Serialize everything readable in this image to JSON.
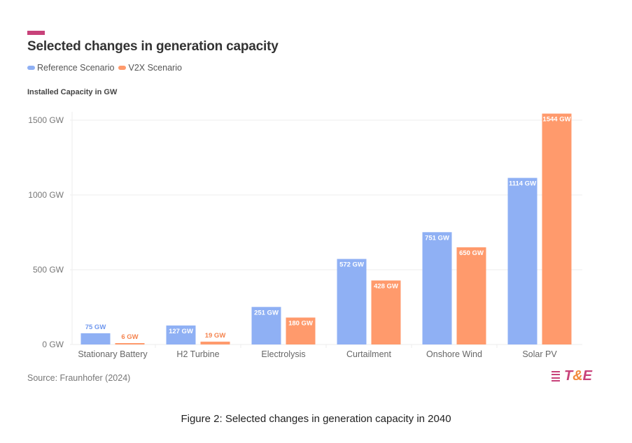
{
  "header": {
    "title": "Selected changes in generation capacity",
    "y_axis_title": "Installed Capacity in GW",
    "source": "Source: Fraunhofer (2024)",
    "logo_text_t": "T",
    "logo_text_amp": "&",
    "logo_text_e": "E",
    "caption": "Figure 2: Selected changes in generation capacity in 2040"
  },
  "colors": {
    "accent": "#c8427a",
    "reference": "#8fb0f4",
    "v2x": "#ff9a6c",
    "reference_label": "#6f97ee",
    "v2x_label": "#f5844f",
    "grid": "#eeeeee"
  },
  "chart_data": {
    "type": "bar",
    "title": "Selected changes in generation capacity",
    "xlabel": "",
    "ylabel": "Installed Capacity in GW",
    "ylim": [
      0,
      1500
    ],
    "yticks": [
      0,
      500,
      1000,
      1500
    ],
    "ytick_labels": [
      "0 GW",
      "500 GW",
      "1000 GW",
      "1500 GW"
    ],
    "grid": true,
    "legend_position": "top-left",
    "categories": [
      "Stationary Battery",
      "H2 Turbine",
      "Electrolysis",
      "Curtailment",
      "Onshore Wind",
      "Solar PV"
    ],
    "series": [
      {
        "name": "Reference Scenario",
        "values": [
          75,
          127,
          251,
          572,
          751,
          1114
        ],
        "labels": [
          "75 GW",
          "127 GW",
          "251 GW",
          "572 GW",
          "751 GW",
          "1114 GW"
        ]
      },
      {
        "name": "V2X Scenario",
        "values": [
          6,
          19,
          180,
          428,
          650,
          1544
        ],
        "labels": [
          "6 GW",
          "19 GW",
          "180 GW",
          "428 GW",
          "650 GW",
          "1544 GW"
        ]
      }
    ]
  }
}
